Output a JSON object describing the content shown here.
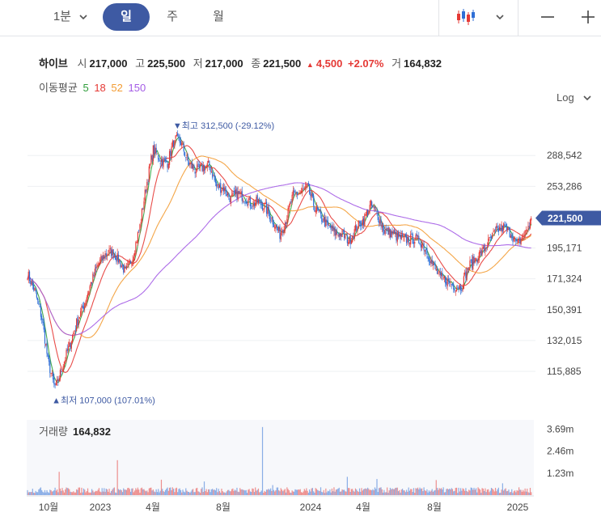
{
  "toolbar": {
    "interval_label": "1분",
    "tabs": [
      {
        "label": "일",
        "active": true
      },
      {
        "label": "주",
        "active": false
      },
      {
        "label": "월",
        "active": false
      }
    ],
    "chart_type_icon": "candlestick-icon",
    "zoom_out_icon": "minus-icon",
    "zoom_in_icon": "plus-icon"
  },
  "stock": {
    "name": "하이브",
    "open_label": "시",
    "open": "217,000",
    "high_label": "고",
    "high": "225,500",
    "low_label": "저",
    "low": "217,000",
    "close_label": "종",
    "close": "221,500",
    "change": "4,500",
    "change_pct": "+2.07%",
    "volume_label": "거",
    "volume": "164,832"
  },
  "moving_average": {
    "label": "이동평균",
    "periods": [
      {
        "value": "5",
        "color": "#2e9d3a"
      },
      {
        "value": "18",
        "color": "#e53935"
      },
      {
        "value": "52",
        "color": "#f39c34"
      },
      {
        "value": "150",
        "color": "#a45ce6"
      }
    ]
  },
  "scale_button": "Log",
  "colors": {
    "up": "#e53935",
    "down": "#2f6fd6",
    "accent": "#3e5aa3"
  },
  "chart_data": {
    "type": "candlestick",
    "log_scale": true,
    "y_ticks": [
      {
        "value": 288542,
        "label": "288,542"
      },
      {
        "value": 253286,
        "label": "253,286"
      },
      {
        "value": 195171,
        "label": "195,171"
      },
      {
        "value": 171324,
        "label": "171,324"
      },
      {
        "value": 150391,
        "label": "150,391"
      },
      {
        "value": 132015,
        "label": "132,015"
      },
      {
        "value": 115885,
        "label": "115,885"
      }
    ],
    "ylim": [
      99000,
      345000
    ],
    "current_price": {
      "value": 221500,
      "label": "221,500"
    },
    "max_marker": {
      "value": 312500,
      "label": "최고 312,500 (-29.12%)"
    },
    "min_marker": {
      "value": 107000,
      "label": "최저 107,000 (107.01%)"
    },
    "x_ticks": [
      "10월",
      "2023",
      "4월",
      "8월",
      "2024",
      "4월",
      "8월",
      "2025"
    ],
    "price_path": [
      [
        0,
        175000
      ],
      [
        7,
        163000
      ],
      [
        14,
        145000
      ],
      [
        20,
        121000
      ],
      [
        27,
        107000
      ],
      [
        34,
        118000
      ],
      [
        41,
        129000
      ],
      [
        48,
        142000
      ],
      [
        55,
        153000
      ],
      [
        62,
        168000
      ],
      [
        69,
        182000
      ],
      [
        76,
        190000
      ],
      [
        82,
        192000
      ],
      [
        89,
        186000
      ],
      [
        96,
        176000
      ],
      [
        103,
        188000
      ],
      [
        110,
        214000
      ],
      [
        117,
        258000
      ],
      [
        123,
        296000
      ],
      [
        130,
        283000
      ],
      [
        137,
        280000
      ],
      [
        144,
        310000
      ],
      [
        150,
        305000
      ],
      [
        157,
        281000
      ],
      [
        164,
        271000
      ],
      [
        171,
        274000
      ],
      [
        178,
        277000
      ],
      [
        185,
        253000
      ],
      [
        192,
        251000
      ],
      [
        199,
        240000
      ],
      [
        205,
        246000
      ],
      [
        212,
        242000
      ],
      [
        219,
        235000
      ],
      [
        226,
        238000
      ],
      [
        233,
        231000
      ],
      [
        240,
        219000
      ],
      [
        247,
        207000
      ],
      [
        253,
        220000
      ],
      [
        260,
        244000
      ],
      [
        267,
        247000
      ],
      [
        274,
        252000
      ],
      [
        281,
        232000
      ],
      [
        288,
        221000
      ],
      [
        294,
        214000
      ],
      [
        301,
        208000
      ],
      [
        308,
        207000
      ],
      [
        315,
        201000
      ],
      [
        322,
        213000
      ],
      [
        329,
        220000
      ],
      [
        336,
        234000
      ],
      [
        342,
        226000
      ],
      [
        349,
        210000
      ],
      [
        356,
        208000
      ],
      [
        363,
        204000
      ],
      [
        370,
        202000
      ],
      [
        377,
        203000
      ],
      [
        384,
        201000
      ],
      [
        390,
        194000
      ],
      [
        397,
        181000
      ],
      [
        404,
        172000
      ],
      [
        411,
        170000
      ],
      [
        418,
        166000
      ],
      [
        425,
        166000
      ],
      [
        431,
        180000
      ],
      [
        438,
        186000
      ],
      [
        445,
        192000
      ],
      [
        452,
        201000
      ],
      [
        459,
        210000
      ],
      [
        466,
        213000
      ],
      [
        473,
        208000
      ],
      [
        479,
        198000
      ],
      [
        486,
        206000
      ],
      [
        493,
        220000
      ]
    ],
    "volume": {
      "ticks": [
        {
          "value": 3690000,
          "label": "3.69m"
        },
        {
          "value": 2460000,
          "label": "2.46m"
        },
        {
          "value": 1230000,
          "label": "1.23m"
        }
      ],
      "max": 4200000,
      "spikes": [
        [
          31,
          1300000
        ],
        [
          88,
          1950000
        ],
        [
          131,
          860000
        ],
        [
          173,
          760000
        ],
        [
          230,
          3800000
        ],
        [
          240,
          560000
        ],
        [
          313,
          1020000
        ],
        [
          342,
          900000
        ],
        [
          400,
          840000
        ],
        [
          465,
          660000
        ]
      ],
      "base": 350000
    }
  },
  "volume_panel": {
    "label": "거래량",
    "value": "164,832"
  }
}
